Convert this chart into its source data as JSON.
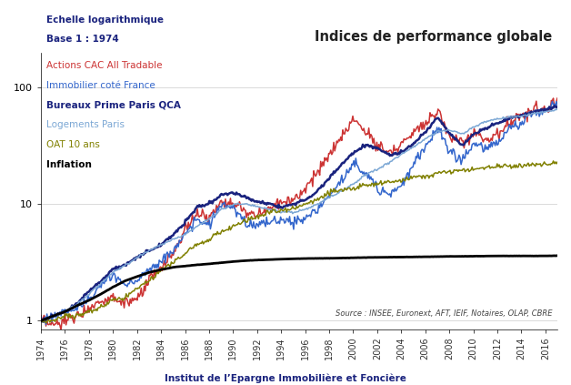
{
  "title": "Indices de performance globale",
  "subtitle_left1": "Echelle logarithmique",
  "subtitle_left2": "Base 1 : 1974",
  "xlabel_bottom": "Institut de l’Epargne Immobilière et Foncière",
  "source_text": "Source : INSEE, Euronext, AFT, IEIF, Notaires, OLAP, CBRE",
  "legend": [
    {
      "label": "Actions CAC All Tradable",
      "color": "#cc3333",
      "lw": 1.1,
      "bold": false
    },
    {
      "label": "Immobilier coté France",
      "color": "#3366cc",
      "lw": 1.1,
      "bold": false
    },
    {
      "label": "Bureaux Prime Paris QCA",
      "color": "#1a237e",
      "lw": 1.8,
      "bold": true
    },
    {
      "label": "Logements Paris",
      "color": "#7ba7d4",
      "lw": 1.1,
      "bold": false
    },
    {
      "label": "OAT 10 ans",
      "color": "#808000",
      "lw": 1.1,
      "bold": false
    },
    {
      "label": "Inflation",
      "color": "#000000",
      "lw": 2.0,
      "bold": true
    }
  ],
  "year_start": 1974,
  "year_end": 2017,
  "yticks": [
    1,
    10,
    100
  ],
  "ylim": [
    0.85,
    200
  ],
  "xtick_step": 2,
  "background_color": "#ffffff",
  "grid_color": "#cccccc",
  "title_color": "#222222",
  "subtitle_color": "#1a237e",
  "bottom_label_color": "#1a237e",
  "source_color": "#444444"
}
